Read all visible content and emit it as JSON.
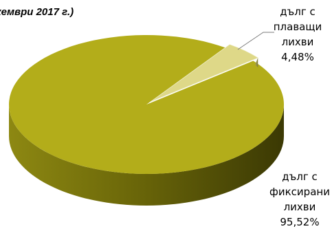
{
  "chart_data": {
    "type": "pie",
    "title": "кември 2017 г.)",
    "slices": [
      {
        "label_lines": [
          "дълг с",
          "фиксирани",
          "лихви"
        ],
        "value": 95.52,
        "value_label": "95,52%",
        "color": "#b3ad1a"
      },
      {
        "label_lines": [
          "дълг с",
          "плаващи",
          "лихви"
        ],
        "value": 4.48,
        "value_label": "4,48%",
        "color": "#ded888"
      }
    ]
  }
}
